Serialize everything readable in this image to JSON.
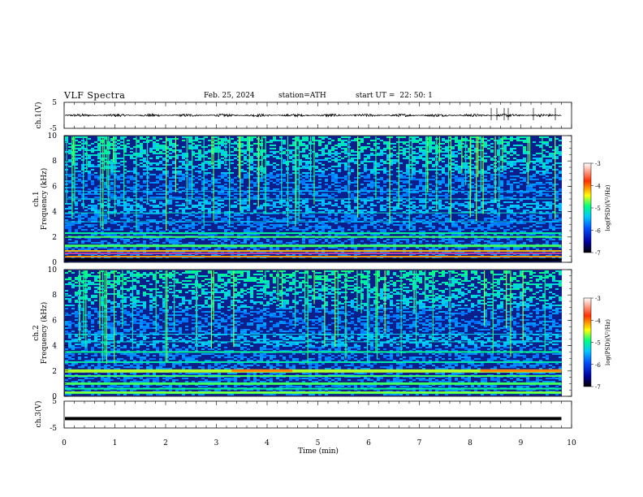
{
  "header": {
    "title": "VLF Spectra",
    "date": "Feb. 25, 2024",
    "station": "station=ATH",
    "start_label": "start UT =",
    "start_time": "22: 50: 1"
  },
  "colors": {
    "spectrogram_background": "#0a1e8c",
    "colormap": [
      "#000000",
      "#0000a0",
      "#0050ff",
      "#00c8ff",
      "#00ff80",
      "#ffff00",
      "#ff3000",
      "#ffffff"
    ]
  },
  "chart_data": [
    {
      "type": "line",
      "panel": "ch1-waveform",
      "ylabel": "ch.1(V)",
      "ylim": [
        -5,
        5
      ],
      "yticks": [
        "5",
        "-5"
      ],
      "description_values": "noisy signal centered near 0 V, amplitude about ±0.6 V",
      "x_range_min": [
        0,
        9.8
      ],
      "y_center": 0
    },
    {
      "type": "heatmap",
      "panel": "ch1-spectrogram",
      "ylabel": "ch.1\nFrequency (kHz)",
      "ylabel_lines": [
        "ch.1",
        "Frequency (kHz)"
      ],
      "ylim": [
        0,
        10
      ],
      "yticks": [
        "0",
        "2",
        "4",
        "6",
        "8",
        "10"
      ],
      "x_range_min": [
        0,
        9.8
      ],
      "colorbar": {
        "label": "log(PSD)(V²/Hz)",
        "range": [
          -7,
          -3
        ],
        "ticks": [
          "-3",
          "-4",
          "-5",
          "-6",
          "-7"
        ]
      },
      "features": {
        "strong_bands_khz": [
          0.2,
          0.5,
          0.9,
          1.4,
          2.0
        ],
        "sferics_count_estimate": 60
      }
    },
    {
      "type": "heatmap",
      "panel": "ch2-spectrogram",
      "ylabel_lines": [
        "ch.2",
        "Frequency (kHz)"
      ],
      "ylim": [
        0,
        10
      ],
      "yticks": [
        "0",
        "2",
        "4",
        "6",
        "8",
        "10"
      ],
      "x_range_min": [
        0,
        9.8
      ],
      "colorbar": {
        "label": "log(PSD)(V²/Hz)",
        "range": [
          -7,
          -3
        ],
        "ticks": [
          "-3",
          "-4",
          "-5",
          "-6",
          "-7"
        ]
      },
      "features": {
        "strong_bands_khz": [
          0.3,
          1.0,
          1.6,
          2.0,
          3.5
        ],
        "red_band_segments": [
          {
            "x_min": [
              3.3,
              4.5
            ],
            "f_khz": 2.0
          },
          {
            "x_min": [
              8.2,
              9.8
            ],
            "f_khz": 2.0
          }
        ]
      }
    },
    {
      "type": "line",
      "panel": "ch3-waveform",
      "ylabel": "ch.3(V)",
      "ylim": [
        -5,
        5
      ],
      "yticks": [
        "5",
        "-5"
      ],
      "x_range_min": [
        0,
        9.8
      ],
      "y_center": -1.5
    }
  ],
  "axes": {
    "xlabel": "Time (min)",
    "xlim": [
      0,
      10
    ],
    "xticks": [
      "0",
      "1",
      "2",
      "3",
      "4",
      "5",
      "6",
      "7",
      "8",
      "9",
      "10"
    ]
  }
}
